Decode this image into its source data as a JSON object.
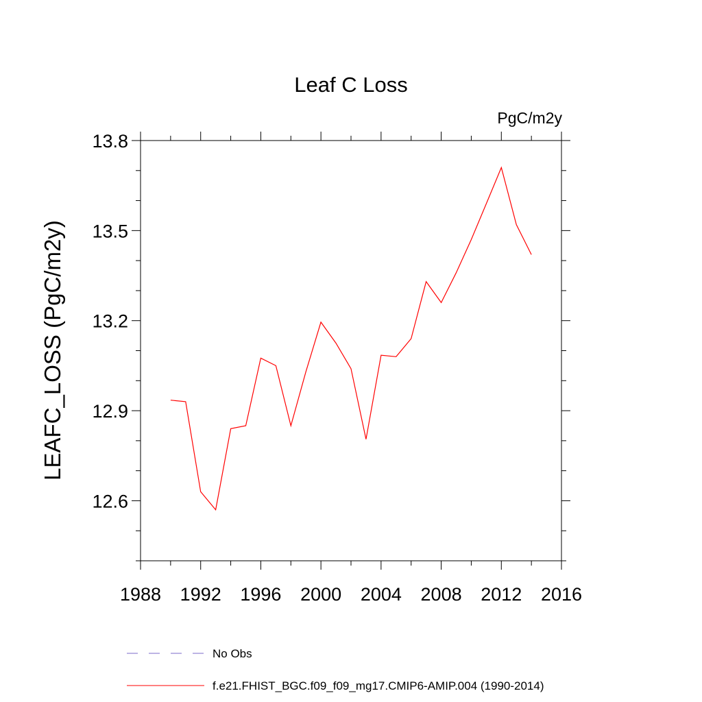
{
  "chart_data": {
    "type": "line",
    "title": "Leaf C Loss",
    "units": "PgC/m2y",
    "xlabel": "",
    "ylabel": "LEAFC_LOSS  (PgC/m2y)",
    "xlim": [
      1988,
      2016
    ],
    "ylim": [
      12.4,
      13.8
    ],
    "xticks": [
      1988,
      1992,
      1996,
      2000,
      2004,
      2008,
      2012,
      2016
    ],
    "yticks": [
      12.6,
      12.9,
      13.2,
      13.5,
      13.8
    ],
    "ytick_labels": [
      "12.6",
      "12.9",
      "13.2",
      "13.5",
      "13.8"
    ],
    "grid": false,
    "legend_position": "bottom",
    "series": [
      {
        "name": "No Obs",
        "color": "#7b68c8",
        "style": "dashed",
        "x": [],
        "values": []
      },
      {
        "name": "f.e21.FHIST_BGC.f09_f09_mg17.CMIP6-AMIP.004 (1990-2014)",
        "color": "#ff0000",
        "style": "solid",
        "x": [
          1990,
          1991,
          1992,
          1993,
          1994,
          1995,
          1996,
          1997,
          1998,
          1999,
          2000,
          2001,
          2002,
          2003,
          2004,
          2005,
          2006,
          2007,
          2008,
          2009,
          2010,
          2011,
          2012,
          2013,
          2014
        ],
        "values": [
          12.935,
          12.93,
          12.63,
          12.57,
          12.84,
          12.85,
          13.075,
          13.05,
          12.85,
          13.03,
          13.195,
          13.125,
          13.04,
          12.805,
          13.085,
          13.08,
          13.14,
          13.33,
          13.26,
          13.36,
          13.47,
          13.59,
          13.71,
          13.52,
          13.42
        ]
      }
    ]
  }
}
